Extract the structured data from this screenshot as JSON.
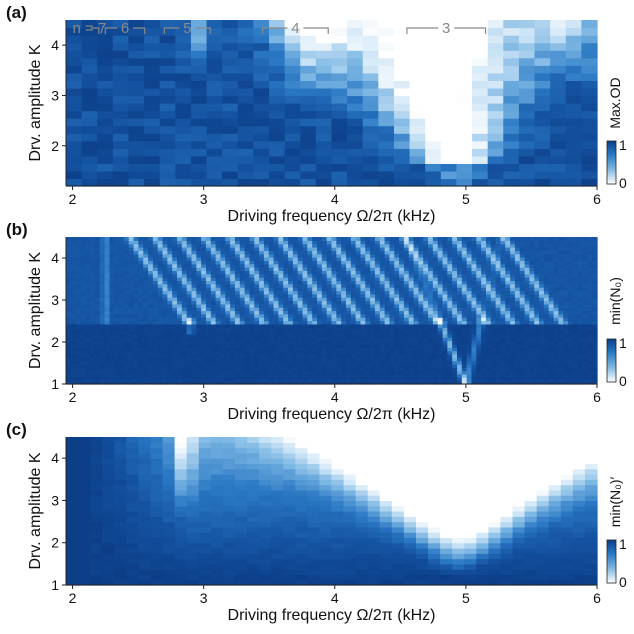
{
  "chart_data": [
    {
      "type": "heatmap",
      "panel": "(a)",
      "xlabel": "Driving frequency Ω/2π (kHz)",
      "ylabel": "Drv. amplitude K",
      "x_ticks": [
        2,
        3,
        4,
        5,
        6
      ],
      "y_ticks": [
        2,
        3,
        4
      ],
      "xlim": [
        1.95,
        6.0
      ],
      "ylim": [
        1.2,
        4.5
      ],
      "colorbar_label": "Max.OD",
      "colorbar_ticks": [
        0,
        1
      ],
      "resonance_labels": [
        {
          "text": "n = 7",
          "x_start": 2.0,
          "x_end": 2.2
        },
        {
          "text": "6",
          "x_start": 2.25,
          "x_end": 2.55
        },
        {
          "text": "5",
          "x_start": 2.7,
          "x_end": 3.05
        },
        {
          "text": "4",
          "x_start": 3.45,
          "x_end": 3.95
        },
        {
          "text": "3",
          "x_start": 4.55,
          "x_end": 5.15
        }
      ]
    },
    {
      "type": "heatmap",
      "panel": "(b)",
      "xlabel": "Driving frequency Ω/2π (kHz)",
      "ylabel": "Drv. amplitude K",
      "x_ticks": [
        2,
        3,
        4,
        5,
        6
      ],
      "y_ticks": [
        1,
        2,
        3,
        4
      ],
      "xlim": [
        1.95,
        6.0
      ],
      "ylim": [
        1.0,
        4.5
      ],
      "colorbar_label": "min(N₀)",
      "colorbar_ticks": [
        0,
        1
      ]
    },
    {
      "type": "heatmap",
      "panel": "(c)",
      "xlabel": "Driving frequency Ω/2π (kHz)",
      "ylabel": "Drv. amplitude K",
      "x_ticks": [
        2,
        3,
        4,
        5,
        6
      ],
      "y_ticks": [
        1,
        2,
        3,
        4
      ],
      "xlim": [
        1.95,
        6.0
      ],
      "ylim": [
        1.0,
        4.5
      ],
      "colorbar_label": "min(N₀)′",
      "colorbar_ticks": [
        0,
        1
      ]
    }
  ],
  "colors": {
    "low": "#ffffff",
    "high": "#0b3f87"
  }
}
